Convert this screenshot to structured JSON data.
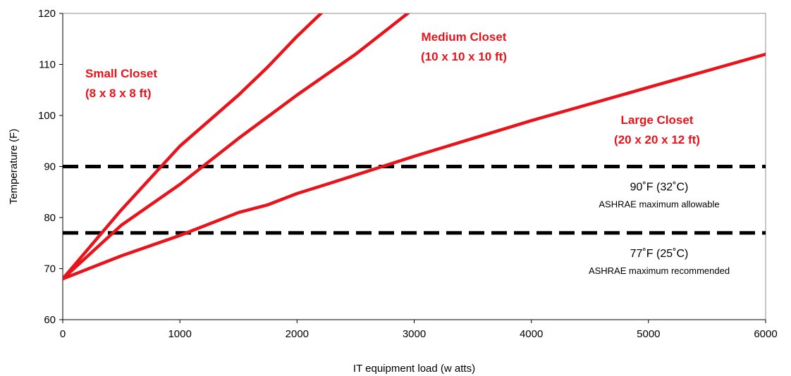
{
  "chart_data": {
    "type": "line",
    "title": "",
    "xlabel": "IT equipment load (w atts)",
    "ylabel": "Temperature (F)",
    "xlim": [
      0,
      6000
    ],
    "ylim": [
      60,
      120
    ],
    "x_ticks": [
      "0",
      "1000",
      "2000",
      "3000",
      "4000",
      "5000",
      "6000"
    ],
    "y_ticks": [
      "60",
      "70",
      "80",
      "90",
      "100",
      "110",
      "120"
    ],
    "grid": false,
    "colors": {
      "series": "#e8141b",
      "reference": "#000000"
    },
    "series": [
      {
        "name": "Small Closet",
        "label_lines": [
          "Small Closet",
          "(8 x 8 x 8 ft)"
        ],
        "x": [
          0,
          500,
          1000,
          1250,
          1500,
          1750,
          2000,
          2250
        ],
        "y": [
          68,
          81.5,
          94,
          99,
          104,
          109.5,
          115.5,
          121
        ]
      },
      {
        "name": "Medium Closet",
        "label_lines": [
          "Medium Closet",
          "(10 x 10 x 10 ft)"
        ],
        "x": [
          0,
          500,
          1000,
          1500,
          2000,
          2500,
          3000
        ],
        "y": [
          68,
          78.5,
          86.5,
          95.5,
          104,
          112,
          121
        ]
      },
      {
        "name": "Large Closet",
        "label_lines": [
          "Large Closet",
          "(20 x 20 x 12 ft)"
        ],
        "x": [
          0,
          500,
          1000,
          1500,
          1750,
          2000,
          2250,
          3000,
          4000,
          5000,
          6000
        ],
        "y": [
          68,
          72.5,
          76.5,
          81,
          82.5,
          84.7,
          86.5,
          92,
          99,
          105.5,
          112
        ]
      }
    ],
    "reference_lines": [
      {
        "y": 90,
        "label": "90˚F (32˚C)",
        "sublabel": "ASHRAE maximum allowable"
      },
      {
        "y": 77,
        "label": "77˚F (25˚C)",
        "sublabel": "ASHRAE maximum recommended"
      }
    ]
  }
}
